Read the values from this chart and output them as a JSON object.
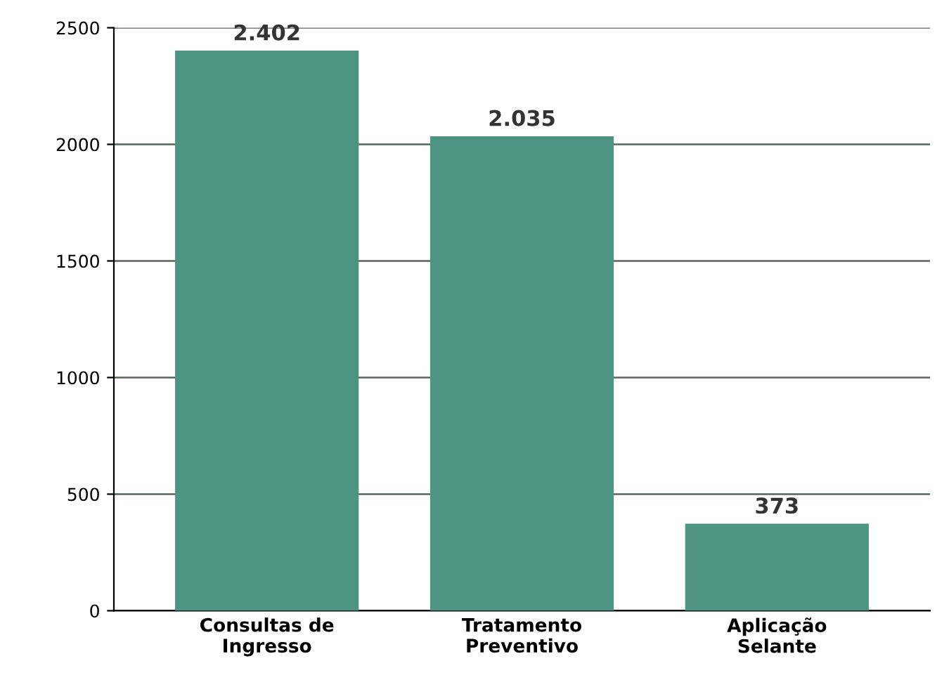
{
  "chart_data": {
    "type": "bar",
    "categories": [
      "Consultas de\nIngresso",
      "Tratamento\nPreventivo",
      "Aplicação\nSelante"
    ],
    "values": [
      2402,
      2035,
      373
    ],
    "value_labels": [
      "2.402",
      "2.035",
      "373"
    ],
    "color": "#4e9482",
    "ylim": [
      0,
      2500
    ],
    "yticks": [
      0,
      500,
      1000,
      1500,
      2000,
      2500
    ],
    "grid": "y"
  }
}
